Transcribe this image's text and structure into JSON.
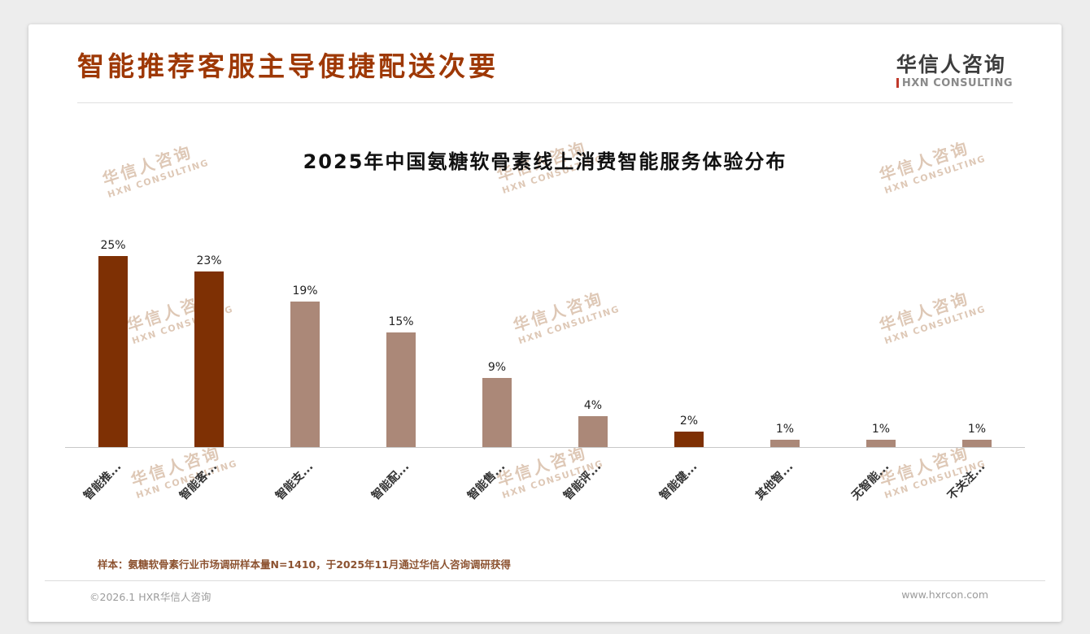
{
  "header": {
    "title": "智能推荐客服主导便捷配送次要",
    "logo": {
      "name": "华信人咨询",
      "subtitle": "HXN CONSULTING"
    }
  },
  "chart_data": {
    "type": "bar",
    "title": "2025年中国氨糖软骨素线上消费智能服务体验分布",
    "categories": [
      "智能推...",
      "智能客...",
      "智能支...",
      "智能配...",
      "智能售...",
      "智能评...",
      "智能健...",
      "其他智...",
      "无智能...",
      "不关注..."
    ],
    "values": [
      25,
      23,
      19,
      15,
      9,
      4,
      2,
      1,
      1,
      1
    ],
    "value_labels": [
      "25%",
      "23%",
      "19%",
      "15%",
      "9%",
      "4%",
      "2%",
      "1%",
      "1%",
      "1%"
    ],
    "bar_colors": [
      "#7E3004",
      "#7E3004",
      "#AB8878",
      "#AB8878",
      "#AB8878",
      "#AB8878",
      "#7E3004",
      "#AB8878",
      "#AB8878",
      "#AB8878"
    ],
    "xlabel": "",
    "ylabel": "",
    "ylim": [
      0,
      27
    ],
    "grid": false,
    "legend": false
  },
  "watermark": {
    "line1": "华信人咨询",
    "line2": "HXN CONSULTING"
  },
  "note": "样本：氨糖软骨素行业市场调研样本量N=1410，于2025年11月通过华信人咨询调研获得",
  "footer": {
    "copyright": "©2026.1 HXR华信人咨询",
    "website": "www.hxrcon.com"
  },
  "colors": {
    "title": "#9E3805",
    "bar_dark": "#7E3004",
    "bar_light": "#AB8878",
    "note": "#8C5230",
    "watermark": "#C49C7C",
    "logo_mark": "#C0392B"
  }
}
